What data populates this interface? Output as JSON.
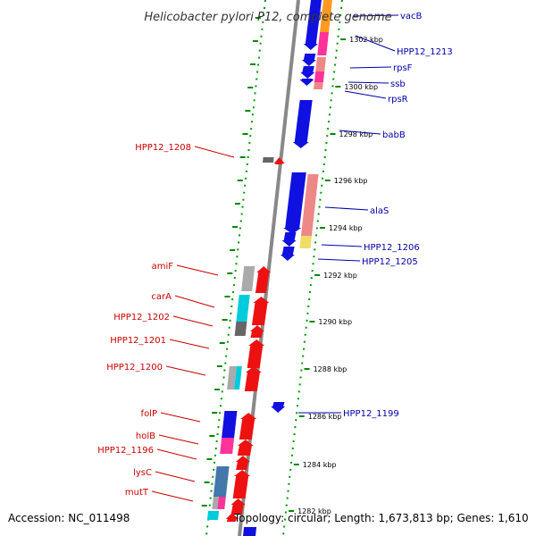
{
  "title": "Helicobacter pylori P12, complete genome",
  "footer": {
    "accession": "Accession: NC_011498",
    "summary": "Topology: circular; Length: 1,673,813 bp; Genes: 1,610"
  },
  "scale_labels": [
    "1302 kbp",
    "1300 kbp",
    "1298 kbp",
    "1296 kbp",
    "1294 kbp",
    "1292 kbp",
    "1290 kbp",
    "1288 kbp",
    "1286 kbp",
    "1284 kbp",
    "1282 kbp"
  ],
  "genes_forward": [
    "vacB",
    "HPP12_1213",
    "rpsF",
    "ssb",
    "rpsR",
    "babB",
    "alaS",
    "HPP12_1206",
    "HPP12_1205",
    "HPP12_1199"
  ],
  "genes_reverse": [
    "HPP12_1208",
    "amiF",
    "carA",
    "HPP12_1202",
    "HPP12_1201",
    "HPP12_1200",
    "folP",
    "holB",
    "HPP12_1196",
    "lysC",
    "mutT"
  ],
  "colors": {
    "forward_gene": "#1010e0",
    "reverse_gene": "#ee1111",
    "backbone": "#888888",
    "forward_label": "#0000aa",
    "reverse_label": "#cc0000",
    "tick": "#008800",
    "cog_pink": "#ff3399",
    "cog_salmon": "#ee8888",
    "cog_steel": "#4477aa",
    "cog_cyan": "#00ccdd",
    "cog_gray": "#aaaaaa",
    "cog_yellow": "#eedd66",
    "cog_orange": "#ff9922"
  }
}
